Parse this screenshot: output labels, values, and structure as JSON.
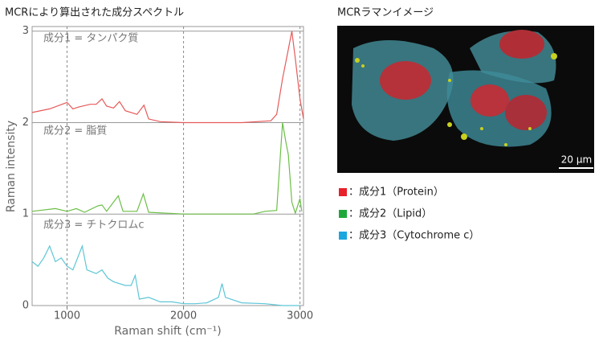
{
  "chart_data": {
    "type": "line",
    "title": "MCRにより算出された成分スペクトル",
    "x_label": "Raman shift (cm⁻¹)",
    "y_label": "Raman intensity",
    "xlim": [
      700,
      3030
    ],
    "xticks": [
      1000,
      2000,
      3000
    ],
    "ylim": [
      0,
      3.05
    ],
    "yticks": [
      0,
      1,
      2,
      3
    ],
    "grid": true,
    "series": [
      {
        "name": "成分1 = タンパク質",
        "color": "#e65a5a",
        "x": [
          700,
          850,
          1000,
          1050,
          1100,
          1200,
          1250,
          1300,
          1340,
          1400,
          1450,
          1500,
          1600,
          1660,
          1700,
          1800,
          2000,
          2500,
          2750,
          2800,
          2850,
          2900,
          2930,
          2960,
          3000,
          3030
        ],
        "values": [
          2.11,
          2.15,
          2.22,
          2.15,
          2.17,
          2.2,
          2.2,
          2.26,
          2.18,
          2.16,
          2.23,
          2.13,
          2.09,
          2.19,
          2.04,
          2.01,
          2.0,
          2.0,
          2.02,
          2.09,
          2.48,
          2.8,
          3.0,
          2.7,
          2.26,
          2.04
        ]
      },
      {
        "name": "成分2 = 脂質",
        "color": "#6cbf48",
        "x": [
          700,
          900,
          1000,
          1080,
          1150,
          1265,
          1300,
          1340,
          1440,
          1480,
          1600,
          1655,
          1700,
          2000,
          2600,
          2700,
          2800,
          2850,
          2880,
          2900,
          2930,
          2960,
          3000,
          3015
        ],
        "values": [
          1.03,
          1.06,
          1.03,
          1.06,
          1.02,
          1.09,
          1.1,
          1.03,
          1.2,
          1.03,
          1.03,
          1.22,
          1.02,
          1.0,
          1.0,
          1.03,
          1.04,
          2.0,
          1.78,
          1.65,
          1.13,
          1.01,
          1.17,
          1.03
        ]
      },
      {
        "name": "成分3 = チトクロムc",
        "color": "#5ec6d6",
        "x": [
          700,
          750,
          800,
          850,
          900,
          950,
          1000,
          1050,
          1130,
          1170,
          1250,
          1300,
          1350,
          1400,
          1500,
          1550,
          1585,
          1620,
          1700,
          1800,
          1900,
          2000,
          2100,
          2200,
          2300,
          2330,
          2360,
          2500,
          2700,
          2850,
          3000
        ],
        "values": [
          0.48,
          0.43,
          0.52,
          0.65,
          0.48,
          0.52,
          0.43,
          0.39,
          0.65,
          0.39,
          0.35,
          0.39,
          0.3,
          0.26,
          0.22,
          0.22,
          0.33,
          0.07,
          0.09,
          0.04,
          0.04,
          0.02,
          0.02,
          0.03,
          0.09,
          0.24,
          0.09,
          0.03,
          0.02,
          0,
          0
        ]
      }
    ]
  },
  "image": {
    "title": "MCRラマンイメージ",
    "scale_bar": "20 µm",
    "legend": [
      {
        "label": "：成分1（Protein）",
        "color": "#e8202a"
      },
      {
        "label": "：成分2（Lipid）",
        "color": "#1fa83a"
      },
      {
        "label": "：成分3（Cytochrome c）",
        "color": "#1aa6df"
      }
    ]
  }
}
